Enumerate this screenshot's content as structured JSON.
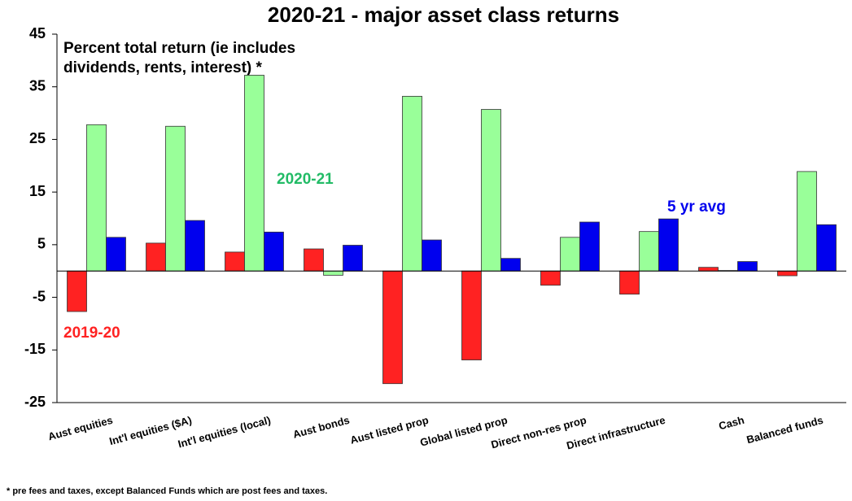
{
  "chart_data": {
    "type": "bar",
    "title": "2020-21 - major asset class returns",
    "subtitle": [
      "Percent total return (ie includes",
      "dividends, rents, interest) *"
    ],
    "footnote": "* pre fees and taxes, except Balanced Funds which are post fees and taxes.",
    "categories": [
      "Aust equities",
      "Int'l equities ($A)",
      "Int'l equities (local)",
      "Aust bonds",
      "Aust listed prop",
      "Global listed prop",
      "Direct non-res prop",
      "Direct infrastructure",
      "Cash",
      "Balanced funds"
    ],
    "series": [
      {
        "name": "2019-20",
        "color": "#ff2222",
        "values": [
          -7.7,
          5.3,
          3.6,
          4.2,
          -21.4,
          -16.9,
          -2.7,
          -4.4,
          0.7,
          -0.9
        ]
      },
      {
        "name": "2020-21",
        "color": "#99ff99",
        "values": [
          27.8,
          27.5,
          37.2,
          -0.8,
          33.2,
          30.7,
          6.4,
          7.5,
          0.1,
          18.9
        ]
      },
      {
        "name": "5 yr avg",
        "color": "#0000ee",
        "values": [
          6.4,
          9.6,
          7.4,
          4.9,
          5.9,
          2.4,
          9.3,
          9.9,
          1.8,
          8.8
        ]
      }
    ],
    "ylim": [
      -25,
      45
    ],
    "yticks": [
      -25,
      -15,
      -5,
      5,
      15,
      25,
      35,
      45
    ]
  }
}
